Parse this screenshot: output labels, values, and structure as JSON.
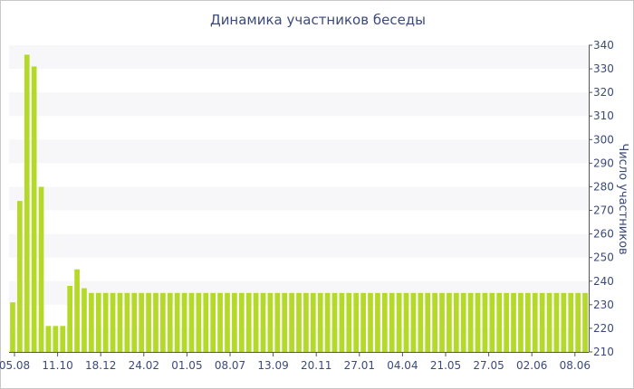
{
  "chart_data": {
    "type": "bar",
    "title": "Динамика участников беседы",
    "xlabel": "",
    "ylabel": "Число участников",
    "ylim": [
      210,
      340
    ],
    "y_ticks": [
      210,
      220,
      230,
      240,
      250,
      260,
      270,
      280,
      290,
      300,
      310,
      320,
      330,
      340
    ],
    "x_tick_labels": [
      "05.08",
      "11.10",
      "18.12",
      "24.02",
      "01.05",
      "08.07",
      "13.09",
      "20.11",
      "27.01",
      "04.04",
      "21.05",
      "27.05",
      "02.06",
      "08.06"
    ],
    "grid": "horizontal bands",
    "bar_color": "#b5d929",
    "values": [
      231,
      274,
      336,
      331,
      280,
      221,
      221,
      221,
      238,
      245,
      237,
      235,
      235,
      235,
      235,
      235,
      235,
      235,
      235,
      235,
      235,
      235,
      235,
      235,
      235,
      235,
      235,
      235,
      235,
      235,
      235,
      235,
      235,
      235,
      235,
      235,
      235,
      235,
      235,
      235,
      235,
      235,
      235,
      235,
      235,
      235,
      235,
      235,
      235,
      235,
      235,
      235,
      235,
      235,
      235,
      235,
      235,
      235,
      235,
      235,
      235,
      235,
      235,
      235,
      235,
      235,
      235,
      235,
      235,
      235,
      235,
      235,
      235,
      235,
      235,
      235,
      235,
      235,
      235,
      235,
      235
    ]
  }
}
